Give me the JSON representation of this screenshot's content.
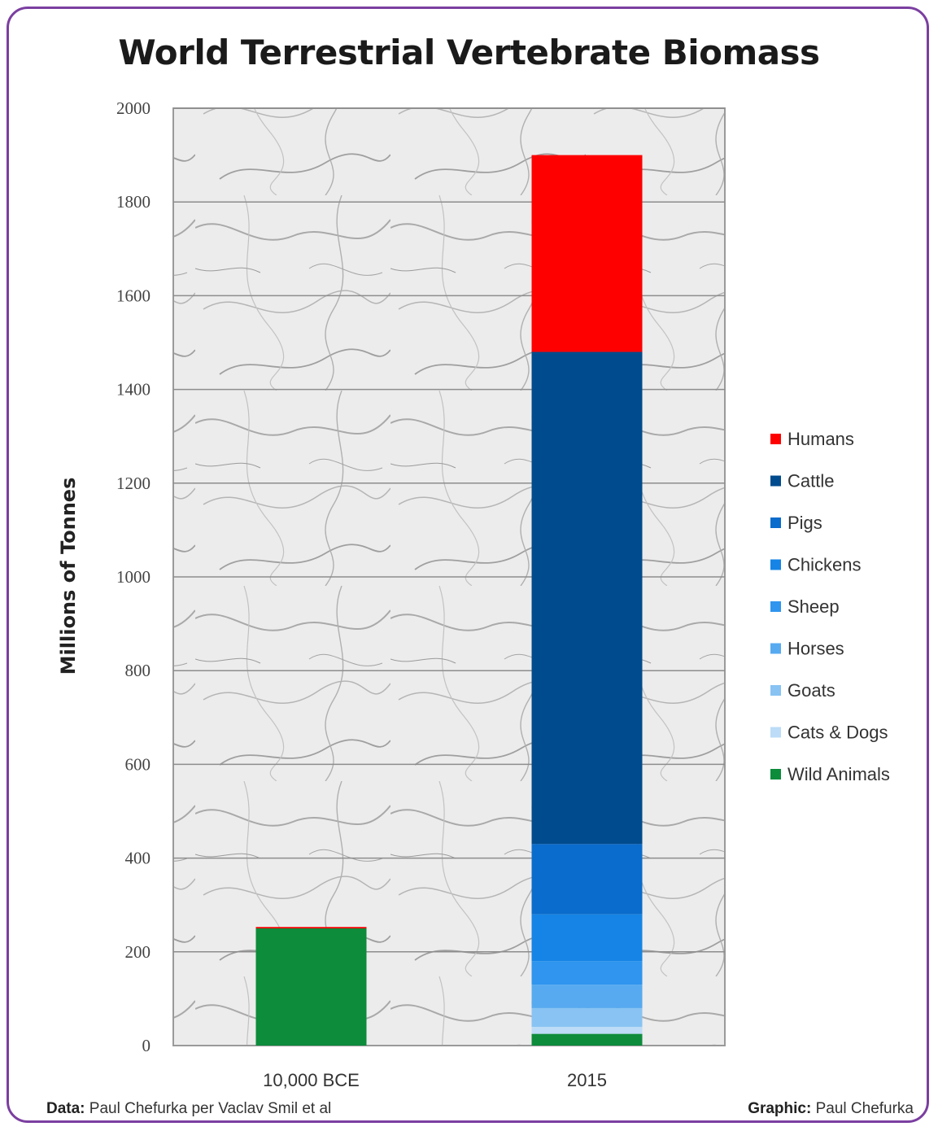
{
  "title": "World Terrestrial Vertebrate Biomass",
  "footer": {
    "data_label": "Data:",
    "data_text": "Paul Chefurka per Vaclav Smil et al",
    "graphic_label": "Graphic:",
    "graphic_text": "Paul Chefurka"
  },
  "colors": {
    "Humans": "#ff0000",
    "Cattle": "#004b8d",
    "Pigs": "#0a6ccc",
    "Chickens": "#1584e6",
    "Sheep": "#2f95ee",
    "Horses": "#57aaf0",
    "Goats": "#88c3f3",
    "Cats & Dogs": "#bcdcf7",
    "Wild Animals": "#0d8c3c"
  },
  "chart_data": {
    "type": "bar",
    "stacked": true,
    "title": "World Terrestrial Vertebrate Biomass",
    "xlabel": "",
    "ylabel": "Millions of Tonnes",
    "ylim": [
      0,
      2000
    ],
    "yticks": [
      0,
      200,
      400,
      600,
      800,
      1000,
      1200,
      1400,
      1600,
      1800,
      2000
    ],
    "grid": true,
    "legend": "right",
    "categories": [
      "10,000 BCE",
      "2015"
    ],
    "series": [
      {
        "name": "Wild Animals",
        "values": [
          250,
          25
        ]
      },
      {
        "name": "Cats & Dogs",
        "values": [
          0,
          15
        ]
      },
      {
        "name": "Goats",
        "values": [
          0,
          40
        ]
      },
      {
        "name": "Horses",
        "values": [
          0,
          50
        ]
      },
      {
        "name": "Sheep",
        "values": [
          0,
          50
        ]
      },
      {
        "name": "Chickens",
        "values": [
          0,
          100
        ]
      },
      {
        "name": "Pigs",
        "values": [
          0,
          150
        ]
      },
      {
        "name": "Cattle",
        "values": [
          0,
          1050
        ]
      },
      {
        "name": "Humans",
        "values": [
          3,
          420
        ]
      }
    ],
    "legend_order": [
      "Humans",
      "Cattle",
      "Pigs",
      "Chickens",
      "Sheep",
      "Horses",
      "Goats",
      "Cats & Dogs",
      "Wild Animals"
    ]
  }
}
